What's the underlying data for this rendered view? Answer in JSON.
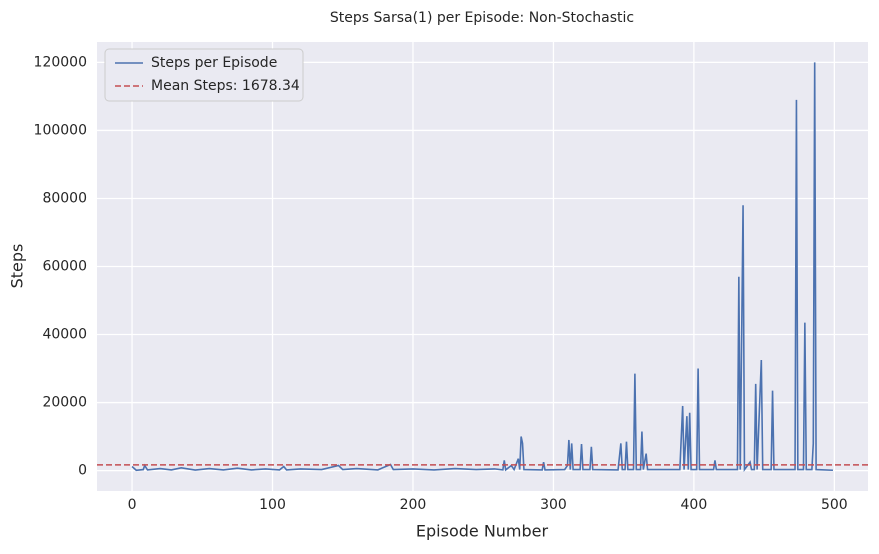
{
  "chart_data": {
    "type": "line",
    "title": "Steps Sarsa(1) per Episode: Non-Stochastic",
    "x_label": "Episode Number",
    "y_label": "Steps",
    "x": [
      0,
      3,
      8,
      9,
      11,
      20,
      28,
      35,
      45,
      55,
      65,
      75,
      85,
      95,
      105,
      108,
      110,
      120,
      135,
      147,
      150,
      160,
      175,
      184,
      186,
      200,
      215,
      230,
      245,
      258,
      264,
      265,
      266,
      270,
      272,
      275,
      276,
      277,
      278,
      279,
      292,
      293,
      294,
      308,
      310,
      311,
      312,
      313,
      314,
      319,
      320,
      321,
      326,
      327,
      328,
      346,
      348,
      349,
      351,
      352,
      353,
      357,
      358,
      359,
      362,
      363,
      364,
      366,
      367,
      390,
      392,
      393,
      395,
      396,
      397,
      398,
      402,
      403,
      404,
      414,
      415,
      416,
      431,
      432,
      433,
      435,
      436,
      440,
      441,
      443,
      444,
      445,
      448,
      449,
      455,
      456,
      457,
      472,
      473,
      474,
      478,
      479,
      480,
      484,
      485,
      486,
      487,
      499
    ],
    "series": [
      {
        "name": "Steps per Episode",
        "color": "#4c72b0",
        "values": [
          1200,
          100,
          300,
          1500,
          200,
          600,
          200,
          800,
          150,
          600,
          200,
          700,
          200,
          500,
          200,
          1200,
          200,
          500,
          300,
          1500,
          300,
          600,
          200,
          1800,
          300,
          500,
          200,
          600,
          300,
          500,
          200,
          3000,
          200,
          1500,
          300,
          3500,
          300,
          10000,
          8000,
          300,
          200,
          2500,
          200,
          300,
          1500,
          9000,
          300,
          8000,
          300,
          300,
          7800,
          300,
          300,
          7000,
          300,
          200,
          8000,
          300,
          300,
          8500,
          300,
          300,
          28500,
          300,
          300,
          11500,
          300,
          5000,
          300,
          300,
          19000,
          300,
          16000,
          300,
          17000,
          300,
          300,
          30000,
          300,
          300,
          3000,
          300,
          300,
          57000,
          300,
          78000,
          300,
          2500,
          300,
          300,
          25500,
          300,
          32500,
          300,
          300,
          23500,
          300,
          300,
          109000,
          300,
          300,
          43500,
          300,
          300,
          8000,
          120000,
          300,
          100
        ]
      },
      {
        "name": "Mean Steps: 1678.34",
        "color": "#c44e52",
        "mean": 1678.34
      }
    ],
    "xlim": [
      -24.95,
      523.95
    ],
    "ylim": [
      -6000,
      126000
    ],
    "xticks": [
      0,
      100,
      200,
      300,
      400,
      500
    ],
    "yticks": [
      0,
      20000,
      40000,
      60000,
      80000,
      100000,
      120000
    ],
    "grid": true,
    "legend": "upper left"
  }
}
